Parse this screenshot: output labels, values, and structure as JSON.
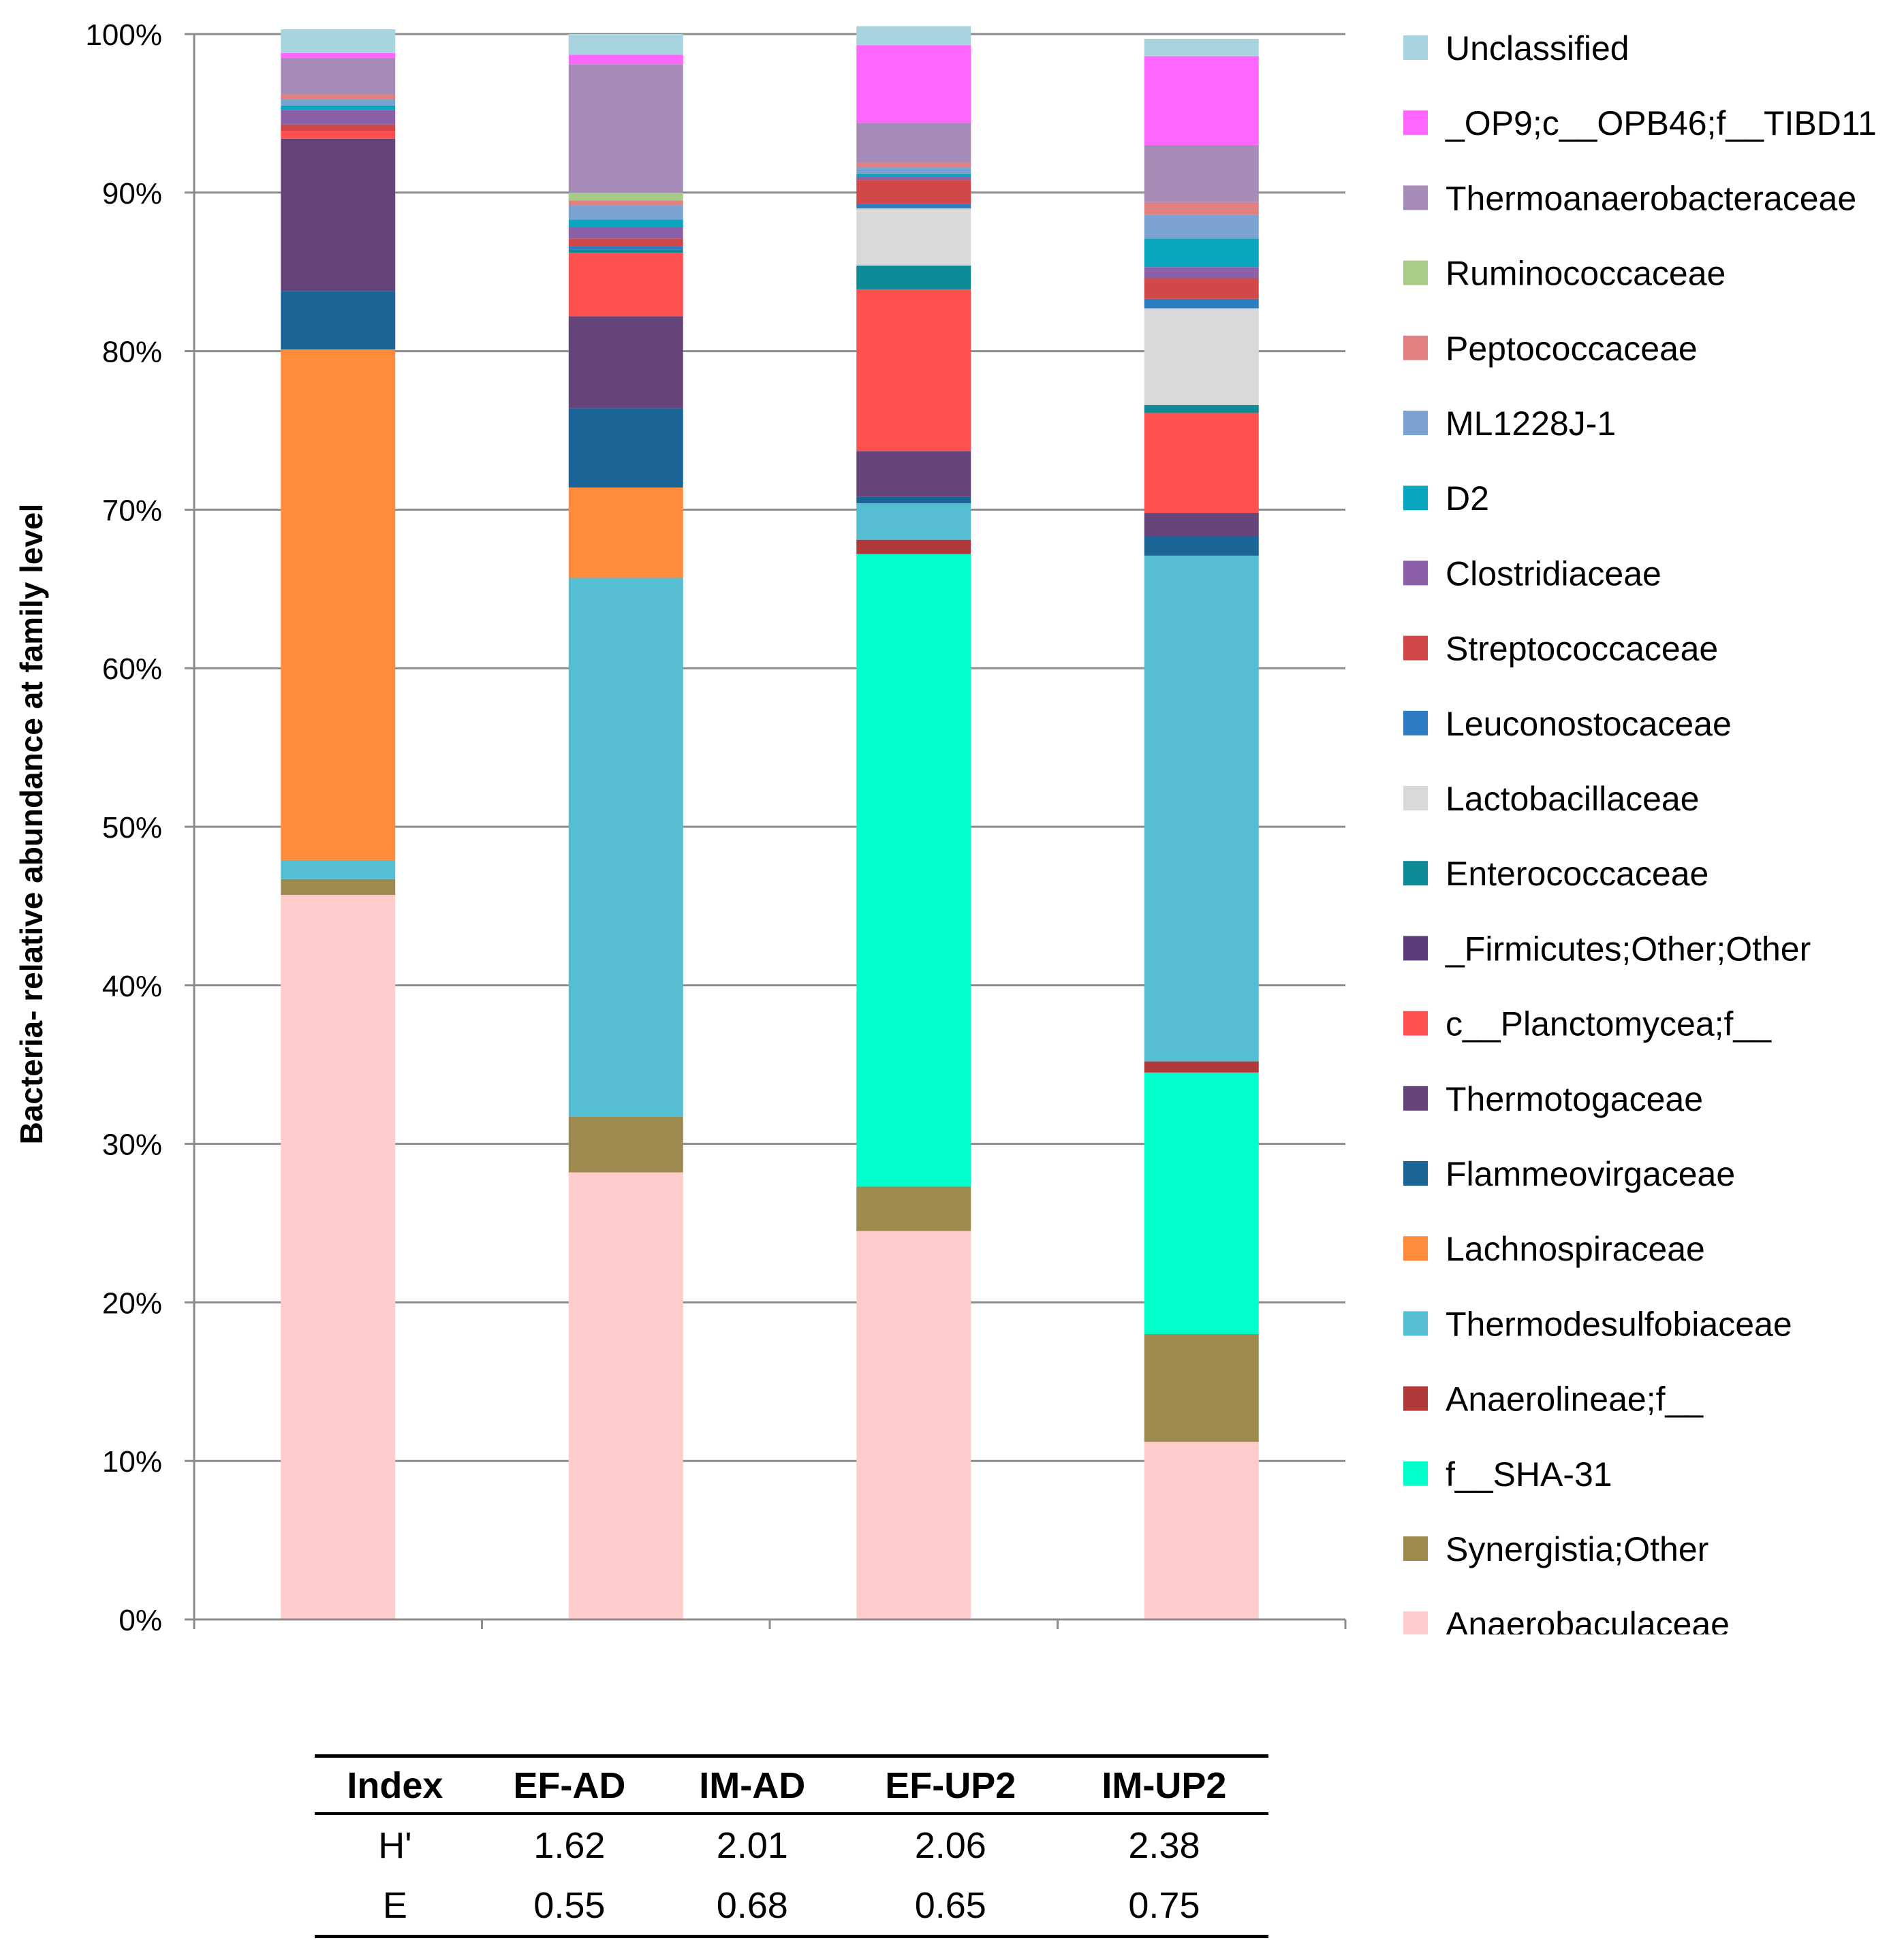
{
  "chart_data": {
    "type": "stacked-bar-100",
    "ylabel": "Bacteria-  relative abundance at family level",
    "ylim": [
      0,
      100
    ],
    "y_ticks": [
      "0%",
      "10%",
      "20%",
      "30%",
      "40%",
      "50%",
      "60%",
      "70%",
      "80%",
      "90%",
      "100%"
    ],
    "categories": [
      "EF-AD",
      "IM-AD",
      "EF-UP2",
      "IM-UP2"
    ],
    "legend_position": "right",
    "series": [
      {
        "name": "Anaerobaculaceae",
        "color": "#FFCCCC",
        "values": [
          45.7,
          28.2,
          24.5,
          11.2
        ]
      },
      {
        "name": "Synergistia;Other",
        "color": "#9C8A4E",
        "values": [
          1.0,
          3.5,
          2.8,
          6.8
        ]
      },
      {
        "name": "f__SHA-31",
        "color": "#00FFCC",
        "values": [
          0.0,
          0.0,
          39.9,
          16.5
        ]
      },
      {
        "name": "Anaerolineae;f__",
        "color": "#B03A3A",
        "values": [
          0.0,
          0.0,
          0.9,
          0.7
        ]
      },
      {
        "name": "Thermodesulfobiaceae",
        "color": "#55BED2",
        "values": [
          1.2,
          34.0,
          2.3,
          31.9
        ]
      },
      {
        "name": "Lachnospiraceae",
        "color": "#FF8C3A",
        "values": [
          32.2,
          5.7,
          0.0,
          0.0
        ]
      },
      {
        "name": "Flammeovirgaceae",
        "color": "#1A6596",
        "values": [
          3.7,
          5.0,
          0.4,
          1.2
        ]
      },
      {
        "name": "Thermotogaceae",
        "color": "#654579",
        "values": [
          9.6,
          5.8,
          2.9,
          1.5
        ]
      },
      {
        "name": "c__Planctomycea;f__",
        "color": "#FF5050",
        "values": [
          0.5,
          4.0,
          10.2,
          6.3
        ]
      },
      {
        "name": "_Firmicutes;Other;Other",
        "color": "#5C3D7A",
        "values": [
          0.0,
          0.0,
          0.0,
          0.0
        ]
      },
      {
        "name": "Enterococcaceae",
        "color": "#0E8A96",
        "values": [
          0.0,
          0.2,
          1.5,
          0.5
        ]
      },
      {
        "name": "Lactobacillaceae",
        "color": "#D9D9D9",
        "values": [
          0.0,
          0.0,
          3.6,
          6.1
        ]
      },
      {
        "name": "Leuconostocaceae",
        "color": "#2D7BC0",
        "values": [
          0.0,
          0.2,
          0.3,
          0.6
        ]
      },
      {
        "name": "Streptococcaceae",
        "color": "#D24848",
        "values": [
          0.4,
          0.5,
          1.5,
          1.3
        ]
      },
      {
        "name": "Clostridiaceae",
        "color": "#8B60A8",
        "values": [
          0.9,
          0.7,
          0.2,
          0.7
        ]
      },
      {
        "name": "D2",
        "color": "#0AA5BE",
        "values": [
          0.3,
          0.5,
          0.2,
          1.8
        ]
      },
      {
        "name": "ML1228J-1",
        "color": "#7BA3D2",
        "values": [
          0.4,
          0.9,
          0.4,
          1.5
        ]
      },
      {
        "name": "Peptococcaceae",
        "color": "#E08080",
        "values": [
          0.3,
          0.3,
          0.3,
          0.8
        ]
      },
      {
        "name": "Ruminococcaceae",
        "color": "#A8CC88",
        "values": [
          0.0,
          0.5,
          0.0,
          0.0
        ]
      },
      {
        "name": "Thermoanaerobacteraceae",
        "color": "#A68BB8",
        "values": [
          2.3,
          8.1,
          2.5,
          3.6
        ]
      },
      {
        "name": "_OP9;c__OPB46;f__TIBD11",
        "color": "#FF66FF",
        "values": [
          0.3,
          0.6,
          4.9,
          5.6
        ]
      },
      {
        "name": "Unclassified",
        "color": "#A8D4E0",
        "values": [
          1.5,
          1.3,
          1.2,
          1.1
        ]
      }
    ]
  },
  "diversity_table": {
    "headers": [
      "Index",
      "EF-AD",
      "IM-AD",
      "EF-UP2",
      "IM-UP2"
    ],
    "rows": [
      {
        "label": "H'",
        "values": [
          "1.62",
          "2.01",
          "2.06",
          "2.38"
        ]
      },
      {
        "label": "E",
        "values": [
          "0.55",
          "0.68",
          "0.65",
          "0.75"
        ]
      }
    ]
  }
}
